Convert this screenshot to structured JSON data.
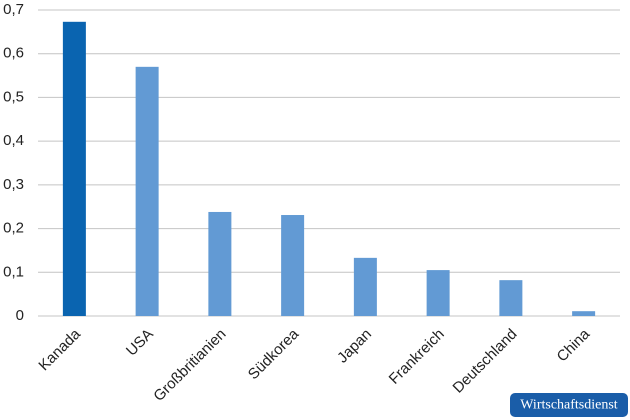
{
  "chart_data": {
    "type": "bar",
    "categories": [
      "Kanada",
      "USA",
      "Großbritianien",
      "Südkorea",
      "Japan",
      "Frankreich",
      "Deutschland",
      "China"
    ],
    "values": [
      0.673,
      0.57,
      0.238,
      0.231,
      0.133,
      0.105,
      0.082,
      0.011
    ],
    "colors": [
      "#0a64b0",
      "#629ad4",
      "#629ad4",
      "#629ad4",
      "#629ad4",
      "#629ad4",
      "#629ad4",
      "#629ad4"
    ],
    "ylim": [
      0,
      0.7
    ],
    "yticks": [
      0,
      {
        "value": 0.1,
        "label": "0,1"
      },
      {
        "value": 0.2,
        "label": "0,2"
      },
      {
        "value": 0.3,
        "label": "0,3"
      },
      {
        "value": 0.4,
        "label": "0,4"
      },
      {
        "value": 0.5,
        "label": "0,5"
      },
      {
        "value": 0.6,
        "label": "0,6"
      },
      {
        "value": 0.7,
        "label": "0,7"
      }
    ],
    "grid": true,
    "source": "Wirtschaftsdienst"
  }
}
